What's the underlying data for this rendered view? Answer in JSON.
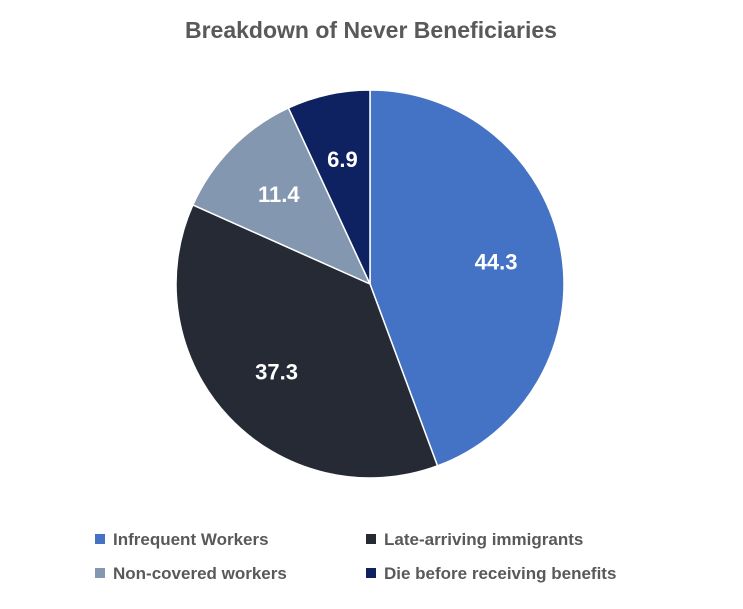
{
  "chart_data": {
    "type": "pie",
    "title": "Breakdown of Never Beneficiaries",
    "categories": [
      "Infrequent Workers",
      "Late-arriving immigrants",
      "Non-covered workers",
      "Die before receiving benefits"
    ],
    "values": [
      44.3,
      37.3,
      11.4,
      6.9
    ],
    "value_labels": [
      "44.3",
      "37.3",
      "11.4",
      "6.9"
    ],
    "colors": [
      "#4472C4",
      "#252A35",
      "#8497B0",
      "#0E2160"
    ],
    "start_angle": "12 o'clock",
    "direction": "clockwise",
    "legend_position": "bottom"
  }
}
